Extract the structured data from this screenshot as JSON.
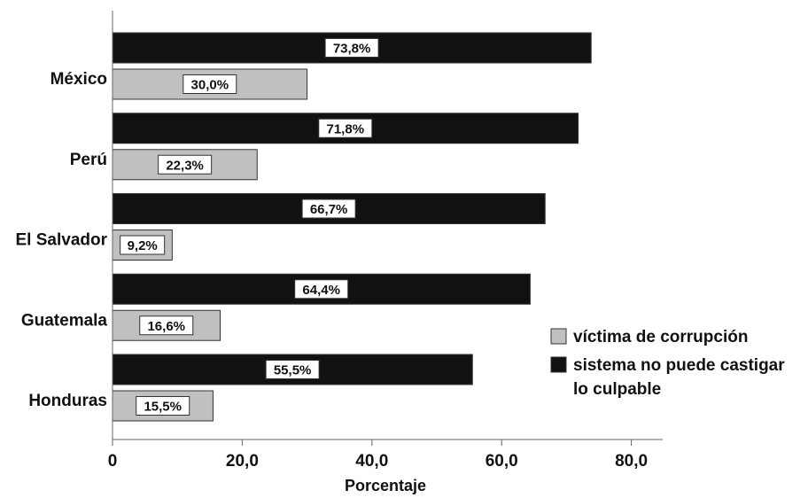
{
  "chart_data": {
    "type": "bar",
    "orientation": "horizontal",
    "categories": [
      "México",
      "Perú",
      "El Salvador",
      "Guatemala",
      "Honduras"
    ],
    "series": [
      {
        "name": "sistema no puede castigar lo culpable",
        "legend_lines": [
          "sistema no puede castigar",
          "lo culpable"
        ],
        "color": "#111111",
        "values": [
          73.8,
          71.8,
          66.7,
          64.4,
          55.5
        ],
        "labels": [
          "73,8%",
          "71,8%",
          "66,7%",
          "64,4%",
          "55,5%"
        ]
      },
      {
        "name": "víctima de corrupción",
        "legend_lines": [
          "víctima de corrupción"
        ],
        "color": "#c0c0c0",
        "values": [
          30.0,
          22.3,
          9.2,
          16.6,
          15.5
        ],
        "labels": [
          "30,0%",
          "22,3%",
          "9,2%",
          "16,6%",
          "15,5%"
        ]
      }
    ],
    "xlabel": "Porcentaje",
    "ylabel": "",
    "xlim": [
      0,
      84
    ],
    "xticks": [
      0,
      20,
      40,
      60,
      80
    ],
    "xtick_labels": [
      "0",
      "20,0",
      "40,0",
      "60,0",
      "80,0"
    ],
    "legend_order": [
      1,
      0
    ],
    "legend_position": "right",
    "grid": false
  }
}
